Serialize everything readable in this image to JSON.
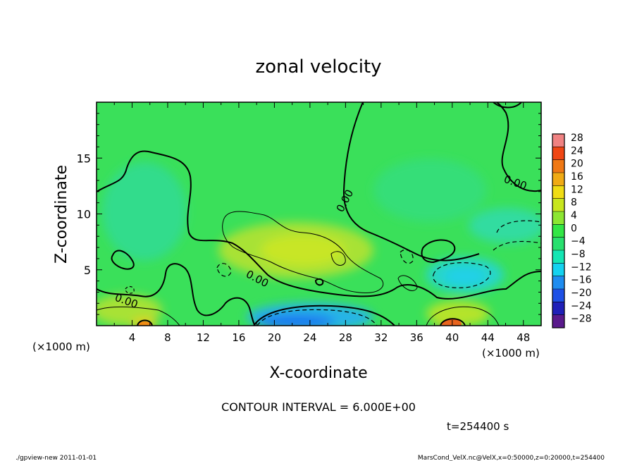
{
  "chart_data": {
    "type": "heatmap",
    "title": "zonal velocity",
    "xlabel": "X-coordinate",
    "ylabel": "Z-coordinate",
    "x_unit_note_left": "(×1000 m)",
    "x_unit_note_right": "(×1000 m)",
    "xlim": [
      0,
      50
    ],
    "ylim": [
      0,
      20
    ],
    "x_ticks": [
      4,
      8,
      12,
      16,
      20,
      24,
      28,
      32,
      36,
      40,
      44,
      48
    ],
    "y_ticks": [
      5,
      10,
      15
    ],
    "colorbar": {
      "levels": [
        -28,
        -24,
        -20,
        -16,
        -12,
        -8,
        -4,
        0,
        4,
        8,
        12,
        16,
        20,
        24,
        28
      ],
      "tick_labels": [
        "28",
        "24",
        "20",
        "16",
        "12",
        "8",
        "4",
        "0",
        "−4",
        "−8",
        "−12",
        "−16",
        "−20",
        "−24",
        "−28"
      ],
      "colors": [
        "#5a1a8c",
        "#2020b8",
        "#1e50e6",
        "#1e8cf0",
        "#14d2f0",
        "#14e6b4",
        "#28e06e",
        "#32e646",
        "#8ce632",
        "#c8e61e",
        "#f0dc14",
        "#f0aa14",
        "#f07814",
        "#f04614",
        "#f08282"
      ]
    },
    "contour_interval": "CONTOUR INTERVAL = 6.000E+00",
    "contour_labels": [
      "0.00",
      "0.00",
      "0.00",
      "0.00"
    ],
    "time_label": "t=254400 s",
    "footer_left": "./gpview-new  2011-01-01",
    "footer_right": "MarsCond_VelX.nc@VelX,x=0:50000,z=0:20000,t=254400"
  }
}
